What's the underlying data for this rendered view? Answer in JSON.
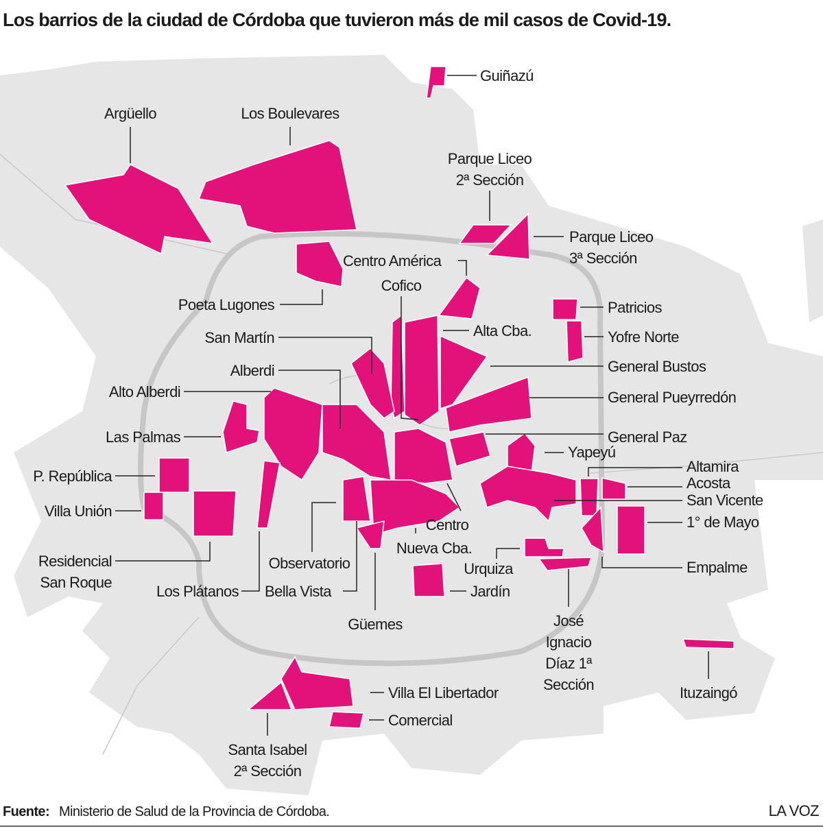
{
  "title": "Los barrios de la ciudad de Córdoba que tuvieron más de mil casos de Covid-19.",
  "neighborhoods": [
    [
      "Argüello"
    ],
    [
      "Los Boulevares"
    ],
    [
      "Guiñazú"
    ],
    [
      "Parque Liceo",
      "2ª Sección"
    ],
    [
      "Parque Liceo",
      "3ª Sección"
    ],
    [
      "Centro América"
    ],
    [
      "Cofico"
    ],
    [
      "Poeta Lugones"
    ],
    [
      "Patricios"
    ],
    [
      "Alta Cba."
    ],
    [
      "Yofre Norte"
    ],
    [
      "San Martín"
    ],
    [
      "General Bustos"
    ],
    [
      "Alberdi"
    ],
    [
      "Alto Alberdi"
    ],
    [
      "General Pueyrredón"
    ],
    [
      "Las Palmas"
    ],
    [
      "General Paz"
    ],
    [
      "Yapeyú"
    ],
    [
      "P. República"
    ],
    [
      "Altamira"
    ],
    [
      "Acosta"
    ],
    [
      "San Vicente"
    ],
    [
      "Villa Unión"
    ],
    [
      "1° de Mayo"
    ],
    [
      "Centro"
    ],
    [
      "Nueva Cba."
    ],
    [
      "Residencial",
      "San Roque"
    ],
    [
      "Observatorio"
    ],
    [
      "Urquiza"
    ],
    [
      "Empalme"
    ],
    [
      "Los Plátanos"
    ],
    [
      "Bella Vista"
    ],
    [
      "Jardín"
    ],
    [
      "Güemes"
    ],
    [
      "José",
      "Ignacio",
      "Díaz 1ª",
      "Sección"
    ],
    [
      "Ituzaingó"
    ],
    [
      "Villa El Libertador"
    ],
    [
      "Comercial"
    ],
    [
      "Santa Isabel",
      "2ª Sección"
    ]
  ],
  "source": {
    "label": "Fuente:",
    "text": "Ministerio de Salud de la Provincia de Córdoba."
  },
  "credit": "LA VOZ"
}
